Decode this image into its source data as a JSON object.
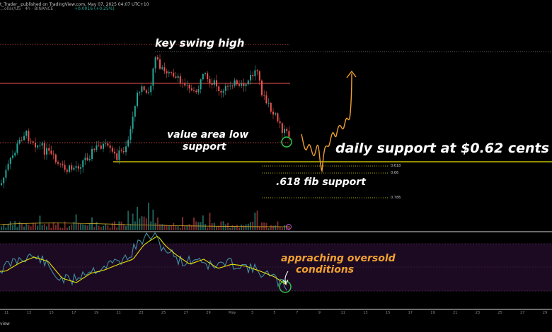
{
  "header": {
    "publisher": "t_Trader_ published on TradingView.com, May 07, 2025 04:07 UTC+10",
    "symbol": "…ollar/US · 4h · BINANCE",
    "change": "+0.0016 (+0.25%)"
  },
  "annotations": {
    "swing_high": "key swing high",
    "value_area_line1": "value area low",
    "value_area_line2": "support",
    "daily_support": "daily support at $0.62 cents",
    "fib_support": ".618 fib support",
    "oversold_line1": "appraching oversold",
    "oversold_line2": "conditions"
  },
  "fib_levels": [
    "0.618",
    "0.66",
    "0.786"
  ],
  "x_axis_labels": [
    "11",
    "13",
    "15",
    "17",
    "19",
    "21",
    "23",
    "25",
    "27",
    "29",
    "May",
    "3",
    "5",
    "7",
    "9",
    "11",
    "13",
    "15",
    "17",
    "19",
    "21",
    "23",
    "25",
    "27",
    "29"
  ],
  "footer_text": "view",
  "colors": {
    "background": "#000000",
    "candle_up": "#26a69a",
    "candle_down": "#ef5350",
    "support_line": "#e8e300",
    "resistance_line": "#ef5350",
    "rsi_line": "#3f8fa0",
    "rsi_ma": "#e8e300",
    "rsi_band": "#2a1030",
    "projection": "#f0a030",
    "highlight_circle": "#2ec54a"
  }
}
